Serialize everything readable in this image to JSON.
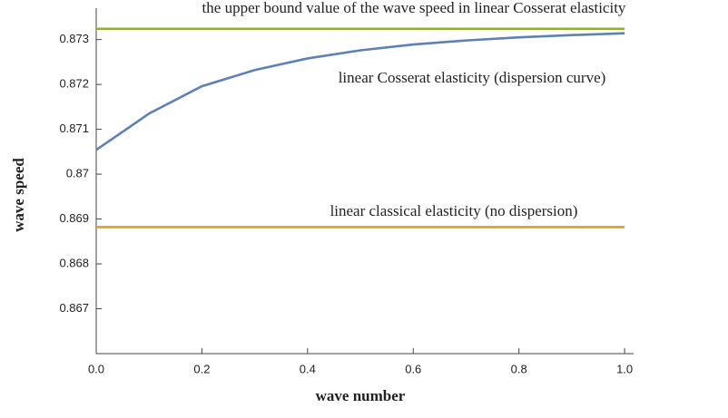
{
  "chart_data": {
    "type": "line",
    "xlabel": "wave number",
    "ylabel": "wave speed",
    "x": [
      0,
      0.1,
      0.2,
      0.3,
      0.4,
      0.5,
      0.6,
      0.7,
      0.8,
      0.9,
      1.0
    ],
    "series": [
      {
        "name": "the upper bound value of the wave speed in linear Cosserat elasticity",
        "color": "#8fb032",
        "values": [
          0.87324,
          0.87324,
          0.87324,
          0.87324,
          0.87324,
          0.87324,
          0.87324,
          0.87324,
          0.87324,
          0.87324,
          0.87324
        ]
      },
      {
        "name": "linear Cosserat elasticity (dispersion curve)",
        "color": "#5e81b5",
        "values": [
          0.87054,
          0.87135,
          0.87196,
          0.87232,
          0.87258,
          0.87276,
          0.87289,
          0.87298,
          0.87305,
          0.8731,
          0.87314
        ]
      },
      {
        "name": "linear classical elasticity (no dispersion)",
        "color": "#e19c24",
        "values": [
          0.86882,
          0.86882,
          0.86882,
          0.86882,
          0.86882,
          0.86882,
          0.86882,
          0.86882,
          0.86882,
          0.86882,
          0.86882
        ]
      }
    ],
    "xlim": [
      0,
      1.017
    ],
    "ylim": [
      0.866,
      0.8737
    ],
    "xticks": [
      {
        "value": 0,
        "label": "0.0"
      },
      0.2,
      0.4,
      0.6,
      0.8,
      {
        "value": 1,
        "label": "1.0"
      }
    ],
    "yticks": [
      0.867,
      0.868,
      0.869,
      0.87,
      0.871,
      0.872,
      0.873
    ]
  }
}
